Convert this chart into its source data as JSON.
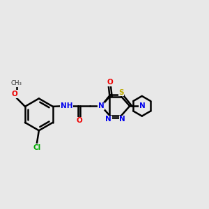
{
  "bg_color": "#e8e8e8",
  "bond_color": "#000000",
  "bond_width": 1.8,
  "atom_colors": {
    "N": "#0000ee",
    "O": "#ee0000",
    "S": "#bbaa00",
    "Cl": "#00aa00",
    "C": "#000000",
    "H": "#888888"
  },
  "font_size": 7.5,
  "fig_bg": "#e8e8e8"
}
